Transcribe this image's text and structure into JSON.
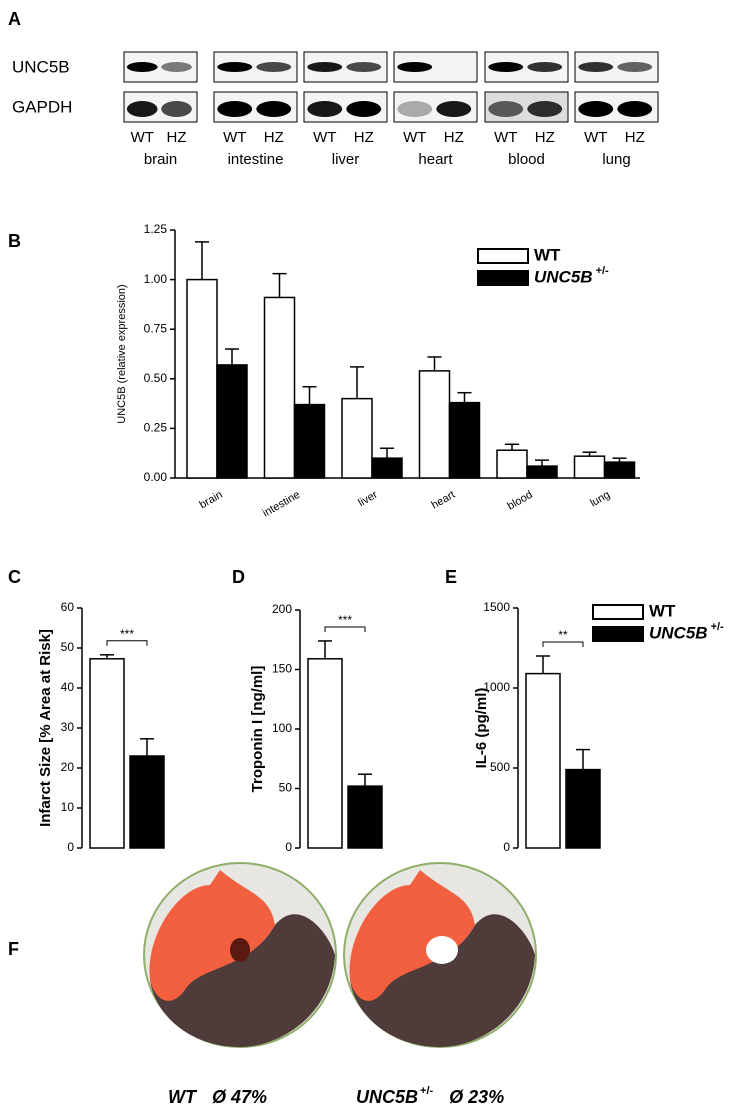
{
  "panel_labels": [
    "A",
    "B",
    "C",
    "D",
    "E",
    "F"
  ],
  "blot": {
    "rows": [
      "UNC5B",
      "GAPDH"
    ],
    "lanes": [
      "WT",
      "HZ"
    ],
    "tissues": [
      "brain",
      "intestine",
      "liver",
      "heart",
      "blood",
      "lung"
    ]
  },
  "chart_data": [
    {
      "type": "bar",
      "y_label": "UNC5B (relative expression)",
      "categories": [
        "brain",
        "intestine",
        "liver",
        "heart",
        "blood",
        "lung"
      ],
      "series": [
        {
          "name": "WT",
          "color": "#ffffff",
          "values": [
            1.0,
            0.91,
            0.4,
            0.54,
            0.14,
            0.11
          ],
          "errors": [
            0.19,
            0.12,
            0.16,
            0.07,
            0.03,
            0.02
          ]
        },
        {
          "name": "UNC5B",
          "name_superscript": "+/-",
          "color": "#000000",
          "values": [
            0.57,
            0.37,
            0.1,
            0.38,
            0.06,
            0.08
          ],
          "errors": [
            0.08,
            0.09,
            0.05,
            0.05,
            0.03,
            0.02
          ]
        }
      ],
      "ylim": [
        0,
        1.25
      ],
      "yticks": [
        {
          "value": 0,
          "label": "0.00"
        },
        {
          "value": 0.25,
          "label": "0.25"
        },
        {
          "value": 0.5,
          "label": "0.50"
        },
        {
          "value": 0.75,
          "label": "0.75"
        },
        {
          "value": 1.0,
          "label": "1.00"
        },
        {
          "value": 1.25,
          "label": "1.25"
        }
      ],
      "legend": "top-right"
    },
    {
      "type": "bar",
      "y_label": "Infarct Size  [% Area at Risk]",
      "series": [
        {
          "color": "#ffffff",
          "values": [
            47.3
          ],
          "errors": [
            1.0
          ]
        },
        {
          "color": "#000000",
          "values": [
            23
          ],
          "errors": [
            4.3
          ]
        }
      ],
      "ylim": [
        0,
        60
      ],
      "yticks": [
        0,
        10,
        20,
        30,
        40,
        50,
        60
      ],
      "annotation": "***"
    },
    {
      "type": "bar",
      "y_label": "Troponin I [ng/ml]",
      "series": [
        {
          "color": "#ffffff",
          "values": [
            159
          ],
          "errors": [
            15
          ]
        },
        {
          "color": "#000000",
          "values": [
            52
          ],
          "errors": [
            10
          ]
        }
      ],
      "ylim": [
        0,
        200
      ],
      "yticks": [
        0,
        50,
        100,
        150,
        200
      ],
      "annotation": "***"
    },
    {
      "type": "bar",
      "y_label": "IL-6 (pg/ml)",
      "series": [
        {
          "name": "WT",
          "color": "#ffffff",
          "values": [
            1090
          ],
          "errors": [
            110
          ]
        },
        {
          "name": "UNC5B",
          "name_superscript": "+/-",
          "color": "#000000",
          "values": [
            490
          ],
          "errors": [
            125
          ]
        }
      ],
      "ylim": [
        0,
        1500
      ],
      "yticks": [
        0,
        500,
        1000,
        1500
      ],
      "annotation": "**",
      "legend": "top-right"
    }
  ],
  "heart_images": [
    {
      "genotype": "WT",
      "infarct": "Ø 47%"
    },
    {
      "genotype": "UNC5B",
      "superscript": "+/-",
      "infarct": "Ø 23%"
    }
  ]
}
